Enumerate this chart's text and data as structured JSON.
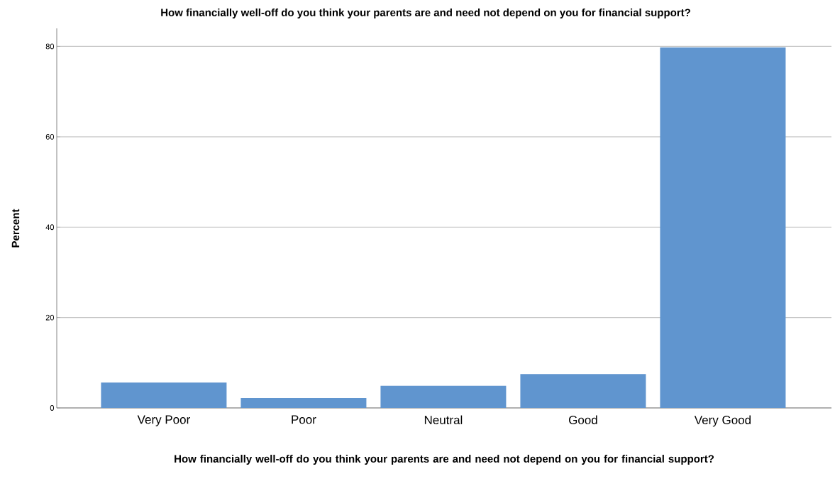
{
  "chart_data": {
    "type": "bar",
    "title": "How financially well-off do you think your parents are and need not depend on you for financial support?",
    "xlabel": "How financially well-off do you think your parents are and need not depend on you for financial support?",
    "ylabel": "Percent",
    "categories": [
      "Very Poor",
      "Poor",
      "Neutral",
      "Good",
      "Very Good"
    ],
    "values": [
      5.6,
      2.2,
      4.9,
      7.5,
      79.8
    ],
    "color": "#6095cf",
    "ylim": [
      0,
      84
    ],
    "yticks": [
      0,
      20,
      40,
      60,
      80
    ],
    "grid": "y"
  }
}
